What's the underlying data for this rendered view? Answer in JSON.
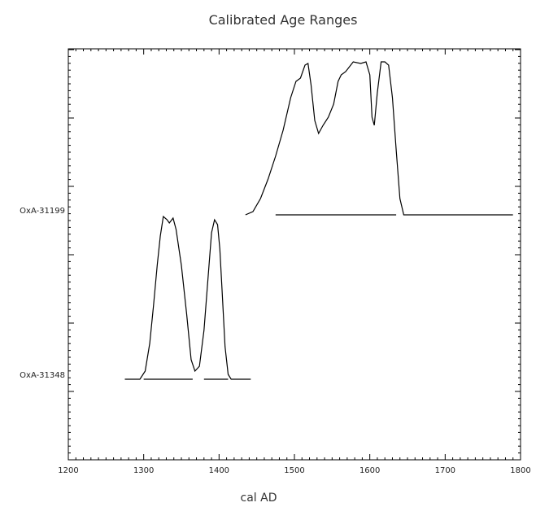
{
  "chart_data": {
    "type": "line",
    "title": "Calibrated Age Ranges",
    "xlabel": "cal AD",
    "ylabel": "",
    "xlim": [
      1200,
      1800
    ],
    "xticks": [
      1200,
      1300,
      1400,
      1500,
      1600,
      1700,
      1800
    ],
    "grid": false,
    "samples": [
      {
        "name": "OxA-31199",
        "ranges": [
          [
            1475,
            1635
          ]
        ],
        "curve": [
          [
            1435,
            0.0
          ],
          [
            1445,
            0.02
          ],
          [
            1455,
            0.1
          ],
          [
            1465,
            0.22
          ],
          [
            1475,
            0.36
          ],
          [
            1485,
            0.52
          ],
          [
            1495,
            0.72
          ],
          [
            1502,
            0.82
          ],
          [
            1508,
            0.84
          ],
          [
            1514,
            0.92
          ],
          [
            1518,
            0.93
          ],
          [
            1522,
            0.8
          ],
          [
            1527,
            0.58
          ],
          [
            1532,
            0.5
          ],
          [
            1538,
            0.55
          ],
          [
            1545,
            0.6
          ],
          [
            1552,
            0.68
          ],
          [
            1558,
            0.82
          ],
          [
            1562,
            0.86
          ],
          [
            1568,
            0.88
          ],
          [
            1578,
            0.94
          ],
          [
            1588,
            0.93
          ],
          [
            1595,
            0.94
          ],
          [
            1600,
            0.86
          ],
          [
            1603,
            0.6
          ],
          [
            1606,
            0.55
          ],
          [
            1610,
            0.75
          ],
          [
            1615,
            0.94
          ],
          [
            1620,
            0.94
          ],
          [
            1625,
            0.92
          ],
          [
            1630,
            0.72
          ],
          [
            1635,
            0.4
          ],
          [
            1640,
            0.1
          ],
          [
            1645,
            0.0
          ],
          [
            1790,
            0.0
          ]
        ]
      },
      {
        "name": "OxA-31348",
        "ranges": [
          [
            1300,
            1365
          ],
          [
            1380,
            1412
          ]
        ],
        "curve": [
          [
            1275,
            0.0
          ],
          [
            1295,
            0.0
          ],
          [
            1302,
            0.05
          ],
          [
            1308,
            0.22
          ],
          [
            1313,
            0.45
          ],
          [
            1318,
            0.7
          ],
          [
            1322,
            0.88
          ],
          [
            1326,
            1.0
          ],
          [
            1331,
            0.98
          ],
          [
            1334,
            0.96
          ],
          [
            1339,
            0.99
          ],
          [
            1343,
            0.92
          ],
          [
            1350,
            0.7
          ],
          [
            1357,
            0.4
          ],
          [
            1363,
            0.12
          ],
          [
            1368,
            0.05
          ],
          [
            1374,
            0.08
          ],
          [
            1380,
            0.3
          ],
          [
            1387,
            0.72
          ],
          [
            1390,
            0.9
          ],
          [
            1394,
            0.98
          ],
          [
            1398,
            0.95
          ],
          [
            1401,
            0.8
          ],
          [
            1404,
            0.55
          ],
          [
            1408,
            0.2
          ],
          [
            1412,
            0.03
          ],
          [
            1416,
            0.0
          ],
          [
            1442,
            0.0
          ]
        ]
      }
    ]
  }
}
